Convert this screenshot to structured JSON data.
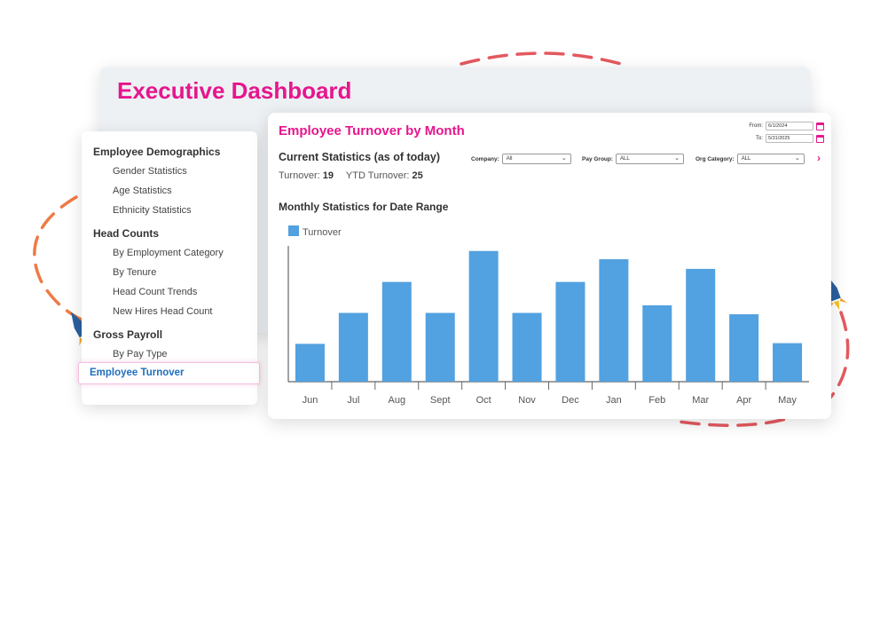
{
  "dashboard": {
    "title": "Executive Dashboard"
  },
  "sidebar": {
    "sections": [
      {
        "label": "Employee Demographics",
        "items": [
          "Gender Statistics",
          "Age Statistics",
          "Ethnicity Statistics"
        ]
      },
      {
        "label": "Head Counts",
        "items": [
          "By Employment Category",
          "By Tenure",
          "Head Count Trends",
          "New Hires Head Count"
        ]
      },
      {
        "label": "Gross Payroll",
        "items": [
          "By Pay Type"
        ]
      }
    ],
    "active_item": "Employee Turnover"
  },
  "report": {
    "title": "Employee Turnover by Month",
    "from_label": "From:",
    "from_value": "6/1/2024",
    "to_label": "To:",
    "to_value": "5/31/2025",
    "current_stats_label": "Current Statistics (as of today)",
    "turnover_label": "Turnover:",
    "turnover_value": "19",
    "ytd_label": "YTD Turnover:",
    "ytd_value": "25",
    "filters": {
      "company_label": "Company:",
      "company_value": "All",
      "paygroup_label": "Pay Group:",
      "paygroup_value": "ALL",
      "orgcat_label": "Org Category:",
      "orgcat_value": "ALL"
    },
    "monthly_label": "Monthly Statistics for Date Range"
  },
  "colors": {
    "accent": "#e6168d",
    "bar": "#52a1e0",
    "link": "#1f6fbf"
  },
  "chart_data": {
    "type": "bar",
    "categories": [
      "Jun",
      "Jul",
      "Aug",
      "Sept",
      "Oct",
      "Nov",
      "Dec",
      "Jan",
      "Feb",
      "Mar",
      "Apr",
      "May"
    ],
    "series": [
      {
        "name": "Turnover",
        "values": [
          5.5,
          10,
          14.5,
          10,
          19,
          10,
          14.5,
          17.8,
          11.1,
          16.4,
          9.8,
          5.6
        ]
      }
    ],
    "ylim": [
      0,
      20
    ],
    "legend": "top-left",
    "grid": false
  }
}
